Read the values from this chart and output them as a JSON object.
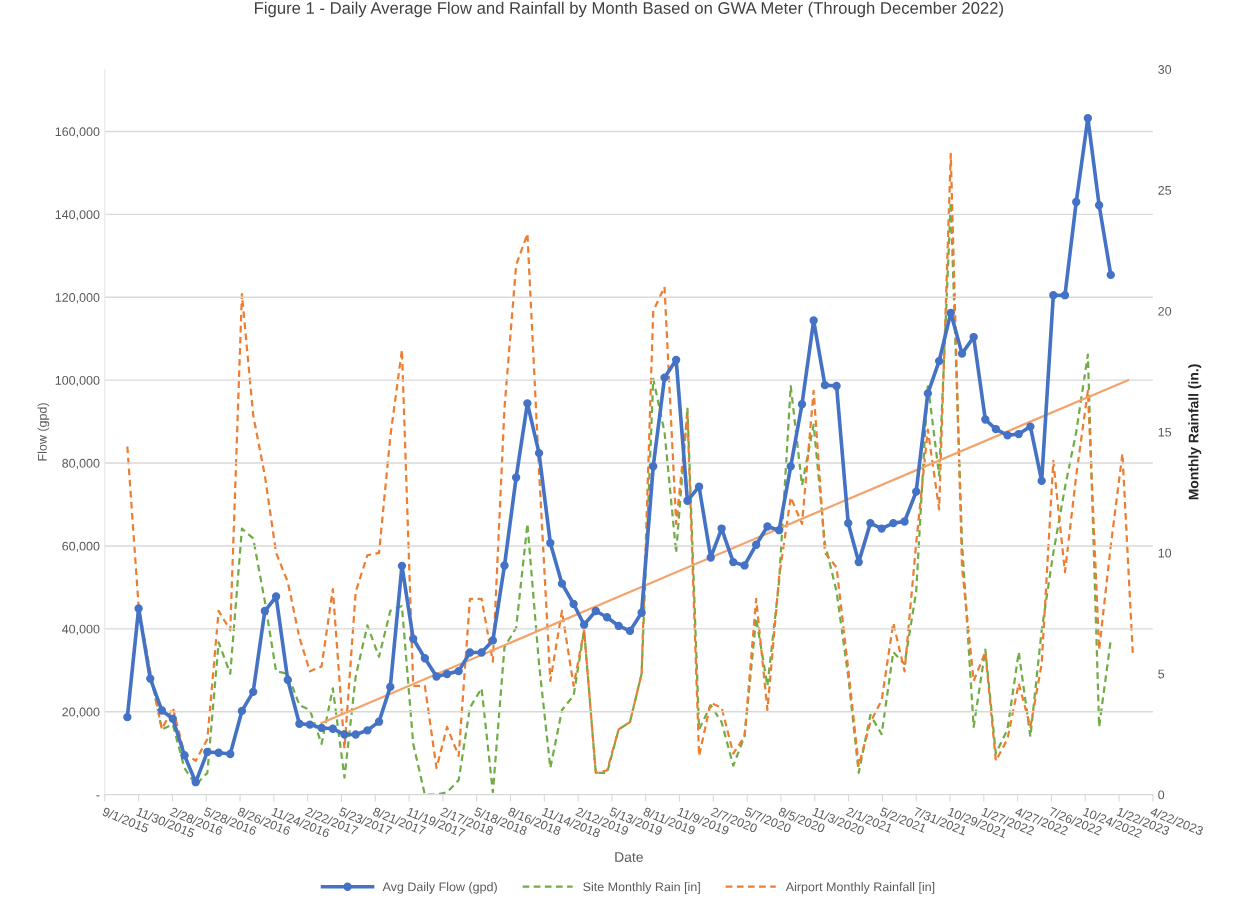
{
  "chart_data": {
    "type": "line",
    "title": "Figure 1 - Daily Average Flow and Rainfall by Month Based on GWA Meter (Through December 2022)",
    "xlabel": "Date",
    "ylabel": "Flow (gpd)",
    "y2label": "Monthly Rainfall (in.)",
    "x": [
      "2015-10-31",
      "2015-11-30",
      "2015-12-31",
      "2016-01-31",
      "2016-02-29",
      "2016-03-31",
      "2016-04-30",
      "2016-05-31",
      "2016-06-30",
      "2016-07-31",
      "2016-08-31",
      "2016-09-30",
      "2016-10-31",
      "2016-11-30",
      "2016-12-31",
      "2017-01-31",
      "2017-02-28",
      "2017-03-31",
      "2017-04-30",
      "2017-05-31",
      "2017-06-30",
      "2017-07-31",
      "2017-08-31",
      "2017-09-30",
      "2017-10-31",
      "2017-11-30",
      "2017-12-31",
      "2018-01-31",
      "2018-02-28",
      "2018-03-31",
      "2018-04-30",
      "2018-05-31",
      "2018-06-30",
      "2018-07-31",
      "2018-08-31",
      "2018-09-30",
      "2018-10-31",
      "2018-11-30",
      "2018-12-31",
      "2019-01-31",
      "2019-02-28",
      "2019-03-31",
      "2019-04-30",
      "2019-05-31",
      "2019-06-30",
      "2019-07-31",
      "2019-08-31",
      "2019-09-30",
      "2019-10-31",
      "2019-11-30",
      "2019-12-31",
      "2020-01-31",
      "2020-02-29",
      "2020-03-31",
      "2020-04-30",
      "2020-05-31",
      "2020-06-30",
      "2020-07-31",
      "2020-08-31",
      "2020-09-30",
      "2020-10-31",
      "2020-11-30",
      "2020-12-31",
      "2021-01-31",
      "2021-02-28",
      "2021-03-31",
      "2021-04-30",
      "2021-05-31",
      "2021-06-30",
      "2021-07-31",
      "2021-08-31",
      "2021-09-30",
      "2021-10-31",
      "2021-11-30",
      "2021-12-31",
      "2022-01-31",
      "2022-02-28",
      "2022-03-31",
      "2022-04-30",
      "2022-05-31",
      "2022-06-30",
      "2022-07-31",
      "2022-08-31",
      "2022-09-30",
      "2022-10-31",
      "2022-11-30",
      "2022-12-31",
      "2023-01-31",
      "2023-02-28"
    ],
    "series": [
      {
        "name": "Avg Daily Flow (gpd)",
        "color": "#4472c4",
        "marker": "circle",
        "line_style": "solid",
        "values": [
          18700,
          44900,
          28000,
          20300,
          18300,
          9500,
          3000,
          10300,
          10100,
          9800,
          20200,
          24800,
          44300,
          47800,
          27700,
          17100,
          16900,
          16100,
          15900,
          14500,
          14500,
          15500,
          17600,
          26000,
          55200,
          37600,
          32900,
          28500,
          29100,
          29800,
          34300,
          34300,
          37200,
          55300,
          76500,
          94400,
          82400,
          60700,
          50900,
          46000,
          41000,
          44300,
          42800,
          40700,
          39500,
          43900,
          79200,
          100600,
          104900,
          70900,
          74300,
          57200,
          64200,
          56100,
          55300,
          60300,
          64700,
          63800,
          79200,
          94200,
          114400,
          98800,
          98600,
          65500,
          56100,
          65500,
          64200,
          65500,
          65900,
          73100,
          96800,
          104600,
          116200,
          106400,
          110400,
          90500,
          88200,
          86700,
          87000,
          88800,
          75700,
          120500,
          120500,
          143000,
          163200,
          142200,
          125400,
          null,
          null
        ]
      },
      {
        "name": "Site Monthly Rain [in]",
        "color": "#70ad47",
        "marker": "none",
        "line_style": "dashed",
        "axis": "y2",
        "values": [
          null,
          7.6,
          5.0,
          2.7,
          2.9,
          1.1,
          0.4,
          0.9,
          6.3,
          5.0,
          11.0,
          10.6,
          8.0,
          5.1,
          5.0,
          3.7,
          3.5,
          2.1,
          4.4,
          0.7,
          4.9,
          7.0,
          5.7,
          7.6,
          7.8,
          2.1,
          0.0,
          0.0,
          0.1,
          0.6,
          3.6,
          4.4,
          0.1,
          6.1,
          6.9,
          11.2,
          5.4,
          1.1,
          3.5,
          4.1,
          6.8,
          0.9,
          0.9,
          2.7,
          3.0,
          5.0,
          17.2,
          15.0,
          10.0,
          16.0,
          2.7,
          3.7,
          3.0,
          1.2,
          2.4,
          7.3,
          4.5,
          8.8,
          16.9,
          12.8,
          15.3,
          10.4,
          8.4,
          4.9,
          0.9,
          3.3,
          2.5,
          5.9,
          5.4,
          8.4,
          17.0,
          13.2,
          24.5,
          10.4,
          2.8,
          6.0,
          1.7,
          2.7,
          5.9,
          2.4,
          6.8,
          10.0,
          12.7,
          15.0,
          18.2,
          2.8,
          6.4,
          null,
          null
        ]
      },
      {
        "name": "Airport Monthly Rainfall [in]",
        "color": "#ed7d31",
        "marker": "none",
        "line_style": "dashed",
        "axis": "y2",
        "values": [
          14.4,
          7.8,
          5.1,
          2.7,
          3.6,
          1.7,
          1.4,
          2.3,
          7.6,
          6.8,
          20.7,
          15.7,
          13.2,
          10.0,
          8.8,
          6.5,
          5.1,
          5.3,
          8.5,
          1.9,
          8.4,
          9.9,
          10.0,
          14.8,
          18.4,
          4.5,
          4.5,
          1.1,
          2.8,
          1.6,
          8.1,
          8.1,
          5.5,
          16.0,
          21.9,
          23.2,
          13.4,
          4.7,
          7.6,
          4.5,
          6.8,
          0.9,
          1.0,
          2.7,
          3.0,
          5.0,
          20.0,
          21.0,
          11.2,
          15.7,
          1.6,
          3.8,
          3.6,
          1.7,
          2.4,
          8.1,
          3.5,
          9.0,
          12.3,
          11.2,
          16.7,
          10.0,
          9.4,
          5.2,
          1.2,
          3.0,
          3.9,
          7.1,
          5.1,
          10.4,
          15.1,
          11.8,
          26.5,
          9.4,
          4.7,
          5.9,
          1.4,
          2.3,
          4.6,
          2.8,
          5.4,
          13.8,
          9.2,
          13.2,
          16.7,
          6.0,
          10.3,
          14.1,
          5.7
        ]
      },
      {
        "type": "line",
        "color": "#f4a36b",
        "marker": "none",
        "line_style": "solid",
        "x": [
          "2017-03-31",
          "2023-02-15"
        ],
        "values": [
          17300,
          100000
        ]
      }
    ],
    "xlim": [
      "2015-09-01",
      "2023-04-22"
    ],
    "xticks": [
      {
        "value": "2015-09-01",
        "label": "9/1/2015"
      },
      {
        "value": "2015-11-30",
        "label": "11/30/2015"
      },
      {
        "value": "2016-02-28",
        "label": "2/28/2016"
      },
      {
        "value": "2016-05-28",
        "label": "5/28/2016"
      },
      {
        "value": "2016-08-26",
        "label": "8/26/2016"
      },
      {
        "value": "2016-11-24",
        "label": "11/24/2016"
      },
      {
        "value": "2017-02-22",
        "label": "2/22/2017"
      },
      {
        "value": "2017-05-23",
        "label": "5/23/2017"
      },
      {
        "value": "2017-08-21",
        "label": "8/21/2017"
      },
      {
        "value": "2017-11-19",
        "label": "11/19/2017"
      },
      {
        "value": "2018-02-17",
        "label": "2/17/2018"
      },
      {
        "value": "2018-05-18",
        "label": "5/18/2018"
      },
      {
        "value": "2018-08-16",
        "label": "8/16/2018"
      },
      {
        "value": "2018-11-14",
        "label": "11/14/2018"
      },
      {
        "value": "2019-02-12",
        "label": "2/12/2019"
      },
      {
        "value": "2019-05-13",
        "label": "5/13/2019"
      },
      {
        "value": "2019-08-11",
        "label": "8/11/2019"
      },
      {
        "value": "2019-11-09",
        "label": "11/9/2019"
      },
      {
        "value": "2020-02-07",
        "label": "2/7/2020"
      },
      {
        "value": "2020-05-07",
        "label": "5/7/2020"
      },
      {
        "value": "2020-08-05",
        "label": "8/5/2020"
      },
      {
        "value": "2020-11-03",
        "label": "11/3/2020"
      },
      {
        "value": "2021-02-01",
        "label": "2/1/2021"
      },
      {
        "value": "2021-05-02",
        "label": "5/2/2021"
      },
      {
        "value": "2021-07-31",
        "label": "7/31/2021"
      },
      {
        "value": "2021-10-29",
        "label": "10/29/2021"
      },
      {
        "value": "2022-01-27",
        "label": "1/27/2022"
      },
      {
        "value": "2022-04-27",
        "label": "4/27/2022"
      },
      {
        "value": "2022-07-26",
        "label": "7/26/2022"
      },
      {
        "value": "2022-10-24",
        "label": "10/24/2022"
      },
      {
        "value": "2023-01-22",
        "label": "1/22/2023"
      },
      {
        "value": "2023-04-22",
        "label": "4/22/2023"
      }
    ],
    "ylim": [
      0,
      175000
    ],
    "yticks": [
      {
        "value": 0,
        "label": "-"
      },
      {
        "value": 20000,
        "label": "20,000"
      },
      {
        "value": 40000,
        "label": "40,000"
      },
      {
        "value": 60000,
        "label": "60,000"
      },
      {
        "value": 80000,
        "label": "80,000"
      },
      {
        "value": 100000,
        "label": "100,000"
      },
      {
        "value": 120000,
        "label": "120,000"
      },
      {
        "value": 140000,
        "label": "140,000"
      },
      {
        "value": 160000,
        "label": "160,000"
      }
    ],
    "y2lim": [
      0,
      30
    ],
    "y2ticks": [
      0,
      5,
      10,
      15,
      20,
      25,
      30
    ],
    "grid": "y",
    "legend": "bottom"
  }
}
